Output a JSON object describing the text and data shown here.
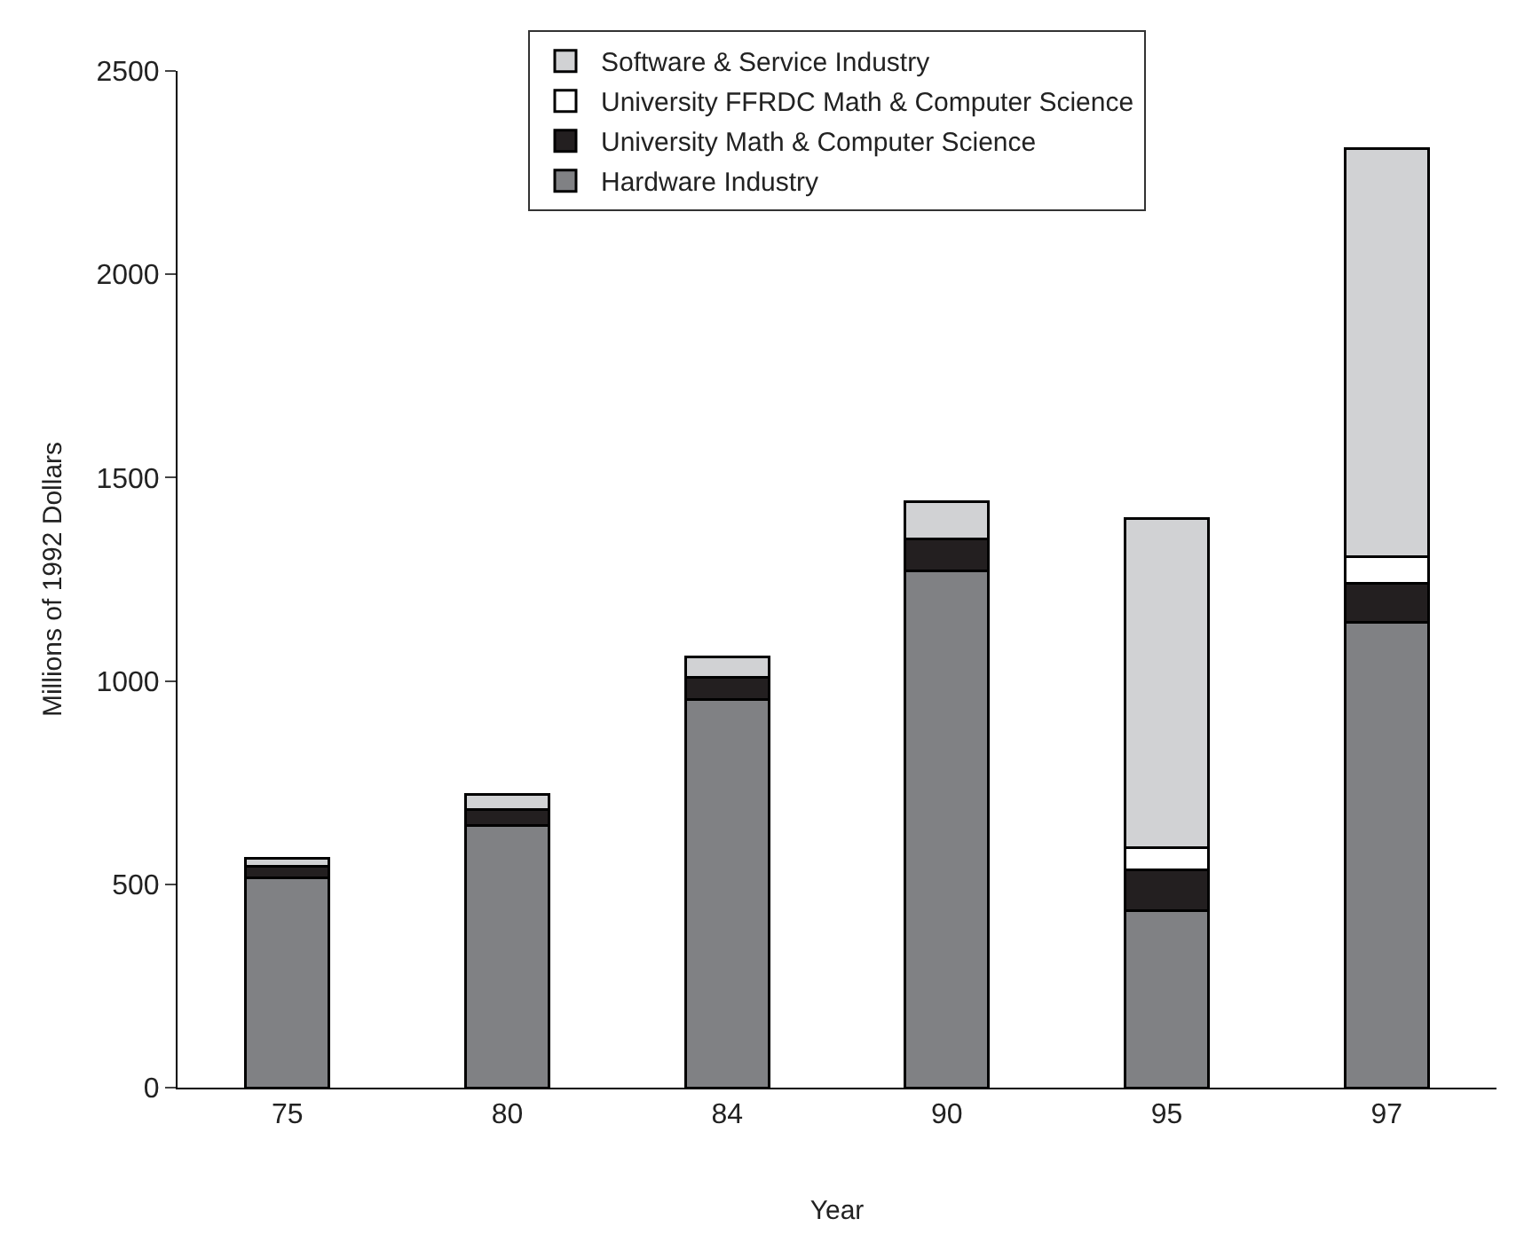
{
  "chart_data": {
    "type": "bar",
    "stacked": true,
    "xlabel": "Year",
    "ylabel": "Millions of 1992 Dollars",
    "categories": [
      "75",
      "80",
      "84",
      "90",
      "95",
      "97"
    ],
    "series": [
      {
        "name": "Hardware Industry",
        "color": "#808184",
        "values": [
          515,
          645,
          955,
          1270,
          435,
          1145
        ]
      },
      {
        "name": "University Math & Computer Science",
        "color": "#231f20",
        "values": [
          30,
          40,
          55,
          80,
          100,
          95
        ]
      },
      {
        "name": "University FFRDC Math & Computer Science",
        "color": "#ffffff",
        "values": [
          null,
          null,
          null,
          null,
          55,
          65
        ]
      },
      {
        "name": "Software & Service Industry",
        "color": "#d1d2d4",
        "values": [
          20,
          35,
          50,
          90,
          810,
          1005
        ]
      }
    ],
    "ylim": [
      0,
      2500
    ],
    "yticks": [
      0,
      500,
      1000,
      1500,
      2000,
      2500
    ],
    "legend": "top"
  }
}
